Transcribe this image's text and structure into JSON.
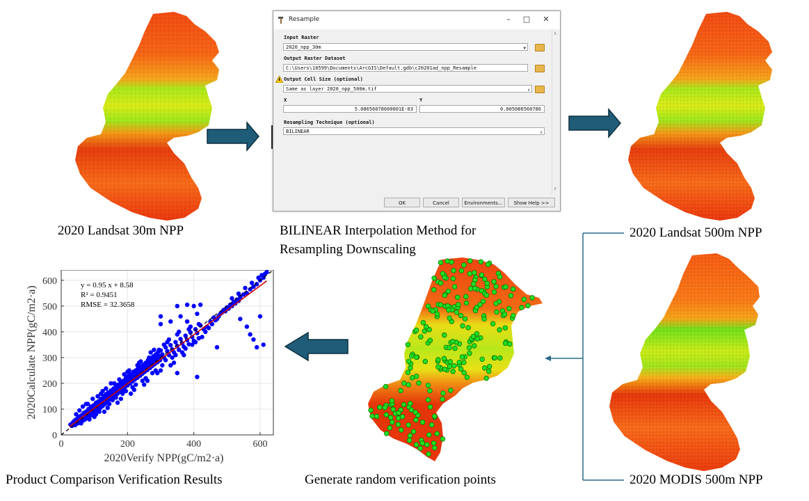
{
  "captions": {
    "landsat30": "2020 Landsat 30m NPP",
    "bilinear_line1": "BILINEAR Interpolation Method for",
    "bilinear_line2": "Resampling Downscaling",
    "landsat500": "2020 Landsat 500m NPP",
    "modis500": "2020 MODIS 500m NPP",
    "random_points": "Generate random verification points",
    "comparison": "Product Comparison Verification Results"
  },
  "dialog": {
    "title": "Resample",
    "controls": [
      "–",
      "□",
      "✕"
    ],
    "input_raster_label": "Input Raster",
    "input_raster_value": "2020_npp_30m",
    "output_label": "Output Raster Dataset",
    "output_value": "C:\\Users\\18599\\Documents\\ArcGIS\\Default.gdb\\c20201ad_npp_Resample",
    "cell_size_label": "Output Cell Size (optional)",
    "cell_size_value": "Same as layer 2020_npp_500m.tif",
    "x_label": "X",
    "x_value": "5.08656078600001E-03",
    "y_label": "Y",
    "y_value": "0.005086560786",
    "technique_label": "Resampling Technique (optional)",
    "technique_value": "BILINEAR",
    "buttons": {
      "ok": "OK",
      "cancel": "Cancel",
      "environments": "Environments...",
      "help": "Show Help >>"
    }
  },
  "stats": {
    "equation": "y = 0.95 x + 8.58",
    "r2": "R² = 0.9451",
    "rmse": "RMSE = 32.3658"
  },
  "colors": {
    "arrow": "#1f5c78",
    "connector": "#2a6a8a",
    "points": "#0000ff",
    "fit_line": "#d00000",
    "identity_line": "#000000",
    "verify_point": "#22dd22",
    "map_red": "#e02a0a",
    "map_orange": "#f26a12",
    "map_yellow": "#e6e613",
    "map_green": "#8ee81a"
  },
  "chart_data": {
    "type": "scatter",
    "xlabel": "2020Verify NPP(gC/m2·a)",
    "ylabel": "2020Calculate NPP(gC/m2·a)",
    "xlim": [
      0,
      640
    ],
    "ylim": [
      0,
      640
    ],
    "xticks": [
      0,
      200,
      400,
      600
    ],
    "yticks": [
      0,
      100,
      200,
      300,
      400,
      500,
      600
    ],
    "grid": true,
    "fit": {
      "slope": 0.95,
      "intercept": 8.58
    },
    "identity_line": true,
    "series": [
      {
        "name": "points",
        "points": [
          [
            28,
            40
          ],
          [
            32,
            35
          ],
          [
            35,
            48
          ],
          [
            38,
            42
          ],
          [
            40,
            55
          ],
          [
            42,
            38
          ],
          [
            45,
            60
          ],
          [
            48,
            52
          ],
          [
            50,
            45
          ],
          [
            52,
            70
          ],
          [
            55,
            58
          ],
          [
            58,
            48
          ],
          [
            60,
            75
          ],
          [
            62,
            62
          ],
          [
            65,
            55
          ],
          [
            68,
            85
          ],
          [
            70,
            70
          ],
          [
            72,
            60
          ],
          [
            75,
            90
          ],
          [
            78,
            78
          ],
          [
            80,
            68
          ],
          [
            82,
            100
          ],
          [
            85,
            88
          ],
          [
            88,
            75
          ],
          [
            90,
            110
          ],
          [
            92,
            95
          ],
          [
            95,
            85
          ],
          [
            98,
            115
          ],
          [
            100,
            100
          ],
          [
            102,
            92
          ],
          [
            105,
            125
          ],
          [
            108,
            108
          ],
          [
            110,
            98
          ],
          [
            112,
            130
          ],
          [
            115,
            118
          ],
          [
            118,
            105
          ],
          [
            120,
            140
          ],
          [
            122,
            125
          ],
          [
            125,
            112
          ],
          [
            128,
            150
          ],
          [
            130,
            135
          ],
          [
            132,
            120
          ],
          [
            135,
            158
          ],
          [
            138,
            142
          ],
          [
            140,
            130
          ],
          [
            142,
            165
          ],
          [
            145,
            150
          ],
          [
            148,
            138
          ],
          [
            150,
            172
          ],
          [
            152,
            160
          ],
          [
            155,
            145
          ],
          [
            158,
            180
          ],
          [
            160,
            165
          ],
          [
            162,
            155
          ],
          [
            165,
            188
          ],
          [
            168,
            172
          ],
          [
            170,
            160
          ],
          [
            172,
            195
          ],
          [
            175,
            180
          ],
          [
            178,
            168
          ],
          [
            180,
            205
          ],
          [
            182,
            190
          ],
          [
            185,
            175
          ],
          [
            188,
            210
          ],
          [
            190,
            198
          ],
          [
            192,
            185
          ],
          [
            195,
            220
          ],
          [
            198,
            205
          ],
          [
            200,
            192
          ],
          [
            202,
            228
          ],
          [
            205,
            212
          ],
          [
            208,
            200
          ],
          [
            210,
            235
          ],
          [
            212,
            220
          ],
          [
            215,
            208
          ],
          [
            218,
            245
          ],
          [
            220,
            228
          ],
          [
            222,
            215
          ],
          [
            225,
            250
          ],
          [
            228,
            238
          ],
          [
            230,
            222
          ],
          [
            232,
            258
          ],
          [
            235,
            245
          ],
          [
            238,
            230
          ],
          [
            240,
            265
          ],
          [
            242,
            252
          ],
          [
            245,
            238
          ],
          [
            248,
            272
          ],
          [
            250,
            260
          ],
          [
            252,
            245
          ],
          [
            255,
            280
          ],
          [
            258,
            268
          ],
          [
            260,
            252
          ],
          [
            262,
            290
          ],
          [
            265,
            275
          ],
          [
            268,
            260
          ],
          [
            270,
            298
          ],
          [
            272,
            282
          ],
          [
            275,
            268
          ],
          [
            278,
            305
          ],
          [
            280,
            290
          ],
          [
            282,
            275
          ],
          [
            285,
            312
          ],
          [
            288,
            298
          ],
          [
            290,
            282
          ],
          [
            292,
            320
          ],
          [
            295,
            305
          ],
          [
            298,
            290
          ],
          [
            300,
            328
          ],
          [
            305,
            312
          ],
          [
            310,
            300
          ],
          [
            315,
            340
          ],
          [
            320,
            325
          ],
          [
            325,
            310
          ],
          [
            330,
            348
          ],
          [
            335,
            332
          ],
          [
            340,
            320
          ],
          [
            345,
            360
          ],
          [
            350,
            345
          ],
          [
            355,
            330
          ],
          [
            360,
            372
          ],
          [
            365,
            355
          ],
          [
            370,
            342
          ],
          [
            375,
            385
          ],
          [
            380,
            368
          ],
          [
            385,
            352
          ],
          [
            390,
            398
          ],
          [
            395,
            380
          ],
          [
            400,
            365
          ],
          [
            405,
            410
          ],
          [
            410,
            395
          ],
          [
            415,
            375
          ],
          [
            420,
            425
          ],
          [
            430,
            410
          ],
          [
            440,
            420
          ],
          [
            450,
            440
          ],
          [
            460,
            455
          ],
          [
            470,
            450
          ],
          [
            480,
            470
          ],
          [
            490,
            485
          ],
          [
            500,
            495
          ],
          [
            510,
            505
          ],
          [
            520,
            515
          ],
          [
            530,
            525
          ],
          [
            540,
            535
          ],
          [
            550,
            545
          ],
          [
            560,
            550
          ],
          [
            570,
            565
          ],
          [
            580,
            575
          ],
          [
            590,
            585
          ],
          [
            600,
            600
          ],
          [
            610,
            610
          ],
          [
            615,
            625
          ],
          [
            620,
            632
          ],
          [
            605,
            620
          ],
          [
            595,
            610
          ],
          [
            575,
            590
          ],
          [
            555,
            570
          ],
          [
            535,
            548
          ],
          [
            515,
            530
          ],
          [
            60,
            45
          ],
          [
            80,
            120
          ],
          [
            100,
            70
          ],
          [
            120,
            160
          ],
          [
            140,
            105
          ],
          [
            160,
            200
          ],
          [
            180,
            140
          ],
          [
            200,
            245
          ],
          [
            220,
            175
          ],
          [
            240,
            285
          ],
          [
            260,
            210
          ],
          [
            280,
            330
          ],
          [
            300,
            250
          ],
          [
            320,
            360
          ],
          [
            340,
            280
          ],
          [
            110,
            150
          ],
          [
            130,
            90
          ],
          [
            150,
            200
          ],
          [
            170,
            125
          ],
          [
            190,
            235
          ],
          [
            210,
            160
          ],
          [
            230,
            270
          ],
          [
            250,
            195
          ],
          [
            270,
            320
          ],
          [
            290,
            240
          ],
          [
            310,
            350
          ],
          [
            330,
            270
          ],
          [
            350,
            390
          ],
          [
            370,
            310
          ],
          [
            390,
            420
          ],
          [
            300,
            460
          ],
          [
            350,
            500
          ],
          [
            380,
            505
          ],
          [
            400,
            500
          ],
          [
            420,
            505
          ],
          [
            300,
            430
          ],
          [
            330,
            440
          ],
          [
            360,
            460
          ],
          [
            380,
            440
          ],
          [
            410,
            470
          ],
          [
            410,
            225
          ],
          [
            350,
            240
          ],
          [
            470,
            340
          ],
          [
            540,
            450
          ],
          [
            560,
            420
          ],
          [
            570,
            390
          ],
          [
            580,
            370
          ],
          [
            590,
            340
          ],
          [
            610,
            350
          ],
          [
            600,
            460
          ],
          [
            45,
            80
          ],
          [
            55,
            95
          ],
          [
            65,
            110
          ],
          [
            75,
            120
          ],
          [
            85,
            60
          ],
          [
            95,
            140
          ],
          [
            105,
            80
          ],
          [
            115,
            90
          ],
          [
            125,
            170
          ],
          [
            135,
            180
          ],
          [
            145,
            120
          ],
          [
            155,
            135
          ],
          [
            165,
            145
          ],
          [
            175,
            215
          ],
          [
            185,
            160
          ],
          [
            195,
            170
          ],
          [
            205,
            250
          ],
          [
            215,
            185
          ],
          [
            225,
            195
          ],
          [
            235,
            280
          ],
          [
            245,
            210
          ],
          [
            255,
            220
          ],
          [
            265,
            300
          ],
          [
            275,
            240
          ],
          [
            285,
            250
          ],
          [
            295,
            330
          ],
          [
            305,
            270
          ],
          [
            315,
            290
          ],
          [
            325,
            370
          ],
          [
            335,
            300
          ],
          [
            345,
            310
          ],
          [
            355,
            400
          ],
          [
            365,
            320
          ],
          [
            375,
            335
          ],
          [
            385,
            410
          ],
          [
            395,
            350
          ],
          [
            405,
            360
          ],
          [
            415,
            430
          ],
          [
            425,
            380
          ],
          [
            435,
            400
          ],
          [
            445,
            415
          ],
          [
            455,
            430
          ],
          [
            465,
            445
          ],
          [
            475,
            460
          ],
          [
            485,
            475
          ],
          [
            495,
            480
          ],
          [
            505,
            490
          ],
          [
            515,
            500
          ],
          [
            525,
            510
          ],
          [
            535,
            520
          ]
        ]
      }
    ]
  }
}
